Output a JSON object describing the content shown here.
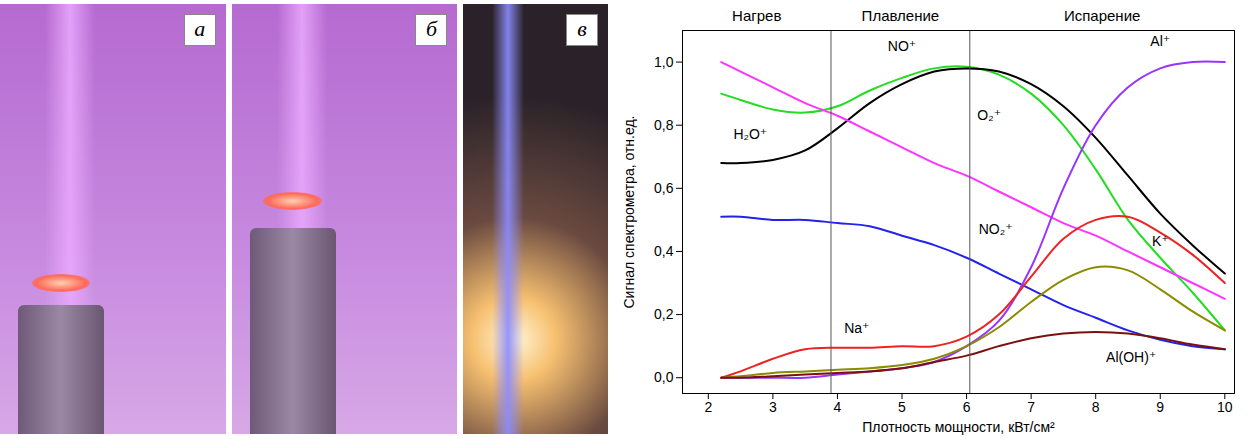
{
  "chart_data": {
    "type": "line",
    "xlabel": "Плотность мощности, кВт/см²",
    "ylabel": "Сигнал спектрометра, отн.ед.",
    "xlim": [
      1.6,
      10.15
    ],
    "xticks": [
      2,
      3,
      4,
      5,
      6,
      7,
      8,
      9,
      10
    ],
    "ylim": [
      -0.05,
      1.1
    ],
    "yticks": [
      {
        "value": 0,
        "label": "0,0"
      },
      {
        "value": 0.2,
        "label": "0,2"
      },
      {
        "value": 0.4,
        "label": "0,4"
      },
      {
        "value": 0.6,
        "label": "0,6"
      },
      {
        "value": 0.8,
        "label": "0,8"
      },
      {
        "value": 1,
        "label": "1,0"
      }
    ],
    "grid": false,
    "region_labels": [
      "Нагрев",
      "Плавление",
      "Испарение"
    ],
    "region_bounds": [
      3.9,
      6.05
    ],
    "x": [
      2.2,
      2.5,
      3,
      3.5,
      4,
      4.5,
      5,
      5.5,
      6,
      6.5,
      7,
      7.5,
      8,
      8.5,
      9,
      9.5,
      10
    ],
    "series": [
      {
        "name": "NO⁺",
        "color": "#22dd22",
        "values": [
          0.9,
          0.88,
          0.85,
          0.84,
          0.86,
          0.91,
          0.95,
          0.98,
          0.985,
          0.96,
          0.9,
          0.8,
          0.66,
          0.5,
          0.38,
          0.27,
          0.15
        ]
      },
      {
        "name": "O₂⁺",
        "color": "#000000",
        "values": [
          0.68,
          0.68,
          0.69,
          0.72,
          0.79,
          0.87,
          0.93,
          0.97,
          0.98,
          0.97,
          0.93,
          0.86,
          0.76,
          0.64,
          0.52,
          0.42,
          0.33
        ]
      },
      {
        "name": "H₂O⁺",
        "color": "#ff33ff",
        "values": [
          1.0,
          0.97,
          0.92,
          0.87,
          0.83,
          0.78,
          0.73,
          0.68,
          0.64,
          0.59,
          0.54,
          0.49,
          0.45,
          0.4,
          0.35,
          0.3,
          0.25
        ]
      },
      {
        "name": "NO₂⁺",
        "color": "#2222ee",
        "values": [
          0.51,
          0.51,
          0.5,
          0.5,
          0.49,
          0.48,
          0.45,
          0.42,
          0.38,
          0.33,
          0.28,
          0.23,
          0.19,
          0.15,
          0.12,
          0.1,
          0.09
        ]
      },
      {
        "name": "Al⁺",
        "color": "#9933ff",
        "values": [
          0,
          0,
          0,
          0,
          0.01,
          0.02,
          0.03,
          0.05,
          0.1,
          0.18,
          0.35,
          0.6,
          0.8,
          0.92,
          0.98,
          1.0,
          1.0
        ]
      },
      {
        "name": "Na⁺",
        "color": "#ee2222",
        "values": [
          0,
          0.02,
          0.06,
          0.09,
          0.095,
          0.095,
          0.1,
          0.1,
          0.13,
          0.2,
          0.32,
          0.44,
          0.5,
          0.51,
          0.46,
          0.39,
          0.3
        ]
      },
      {
        "name": "K⁺",
        "color": "#8b8b00",
        "values": [
          0,
          0.005,
          0.015,
          0.02,
          0.025,
          0.03,
          0.04,
          0.06,
          0.1,
          0.16,
          0.24,
          0.31,
          0.35,
          0.34,
          0.28,
          0.21,
          0.15
        ]
      },
      {
        "name": "Al(OH)⁺",
        "color": "#7a1010",
        "values": [
          0,
          0,
          0.005,
          0.01,
          0.015,
          0.02,
          0.03,
          0.05,
          0.07,
          0.1,
          0.125,
          0.14,
          0.145,
          0.14,
          0.125,
          0.105,
          0.09
        ]
      }
    ]
  },
  "photos": {
    "labels": [
      "а",
      "б",
      "в"
    ]
  }
}
